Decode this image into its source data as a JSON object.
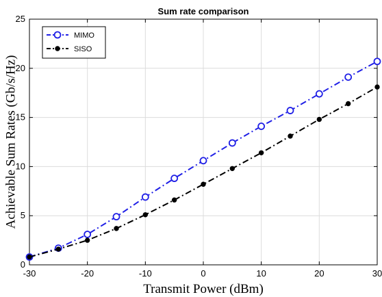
{
  "chart_data": {
    "type": "line",
    "title": "Sum rate comparison",
    "xlabel": "Transmit Power (dBm)",
    "ylabel": "Achievable Sum Rates (Gb/s/Hz)",
    "xlim": [
      -30,
      30
    ],
    "ylim": [
      0,
      25
    ],
    "xticks": [
      -30,
      -20,
      -10,
      0,
      10,
      20,
      30
    ],
    "yticks": [
      0,
      5,
      10,
      15,
      20,
      25
    ],
    "grid": true,
    "legend_position": "top-left",
    "x": [
      -30,
      -25,
      -20,
      -15,
      -10,
      -5,
      0,
      5,
      10,
      15,
      20,
      25,
      30
    ],
    "series": [
      {
        "name": "MIMO",
        "color": "#1f1fe6",
        "marker": "open-circle",
        "line_style": "dash-dot",
        "values": [
          0.8,
          1.7,
          3.1,
          4.9,
          6.9,
          8.8,
          10.6,
          12.4,
          14.1,
          15.7,
          17.4,
          19.1,
          20.7
        ]
      },
      {
        "name": "SISO",
        "color": "#000000",
        "marker": "filled-circle",
        "line_style": "dash-dot",
        "values": [
          0.8,
          1.6,
          2.5,
          3.7,
          5.1,
          6.6,
          8.2,
          9.8,
          11.4,
          13.1,
          14.8,
          16.4,
          18.1
        ]
      }
    ]
  }
}
